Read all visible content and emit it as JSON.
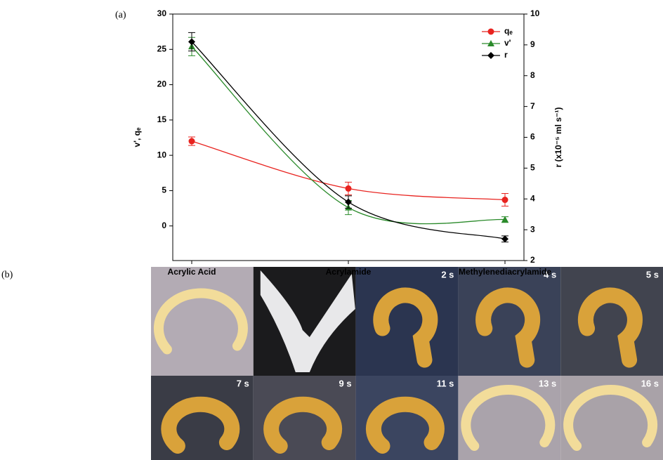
{
  "panel_labels": [
    "(a)",
    "(b)"
  ],
  "photo_labels": [
    "2 s",
    "4 s",
    "5 s",
    "7 s",
    "9 s",
    "11 s",
    "13 s",
    "16 s"
  ],
  "chart_data": {
    "type": "line",
    "categories": [
      "Acrylic Acid",
      "Acrylamide",
      "Methylenediacrylamide"
    ],
    "y_label": "v', qₑ",
    "y2_label": "r (x10⁻⁵ ml s⁻¹)",
    "ylim": [
      -4.9,
      30
    ],
    "yticks": [
      0,
      5,
      10,
      15,
      20,
      25,
      30
    ],
    "y2lim": [
      2,
      10
    ],
    "y2ticks": [
      2,
      3,
      4,
      5,
      6,
      7,
      8,
      9,
      10
    ],
    "legend": "upper right",
    "series": [
      {
        "name": "qₑ",
        "color": "#e8231f",
        "marker": "circle",
        "values": [
          12.0,
          5.3,
          3.7
        ],
        "errors": [
          0.6,
          0.9,
          0.9
        ]
      },
      {
        "name": "v'",
        "color": "#2a8a2a",
        "marker": "triangle",
        "values": [
          25.4,
          2.6,
          0.9
        ],
        "errors": [
          1.3,
          1.0,
          0.4
        ]
      },
      {
        "name": "r",
        "color": "#000000",
        "marker": "diamond",
        "axis": "y2",
        "values": [
          9.1,
          3.9,
          2.7
        ],
        "errors": [
          0.3,
          0.2,
          0.1
        ]
      }
    ]
  }
}
